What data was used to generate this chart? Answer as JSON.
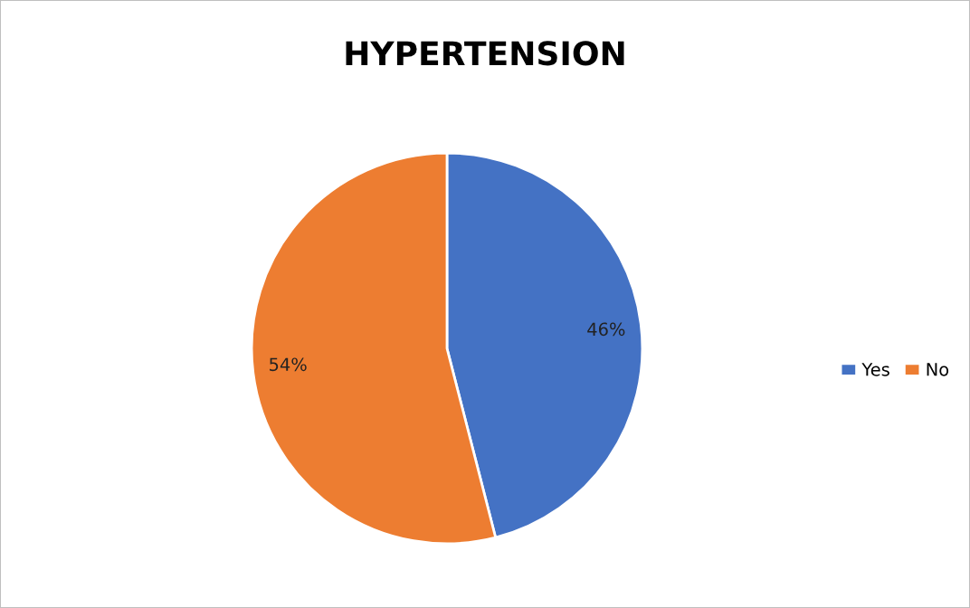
{
  "chart_data": {
    "type": "pie",
    "title": "HYPERTENSION",
    "categories": [
      "Yes",
      "No"
    ],
    "values": [
      46,
      54
    ],
    "colors": [
      "#4472c4",
      "#ed7d31"
    ],
    "value_labels": [
      "46%",
      "54%"
    ],
    "legend": "right"
  }
}
